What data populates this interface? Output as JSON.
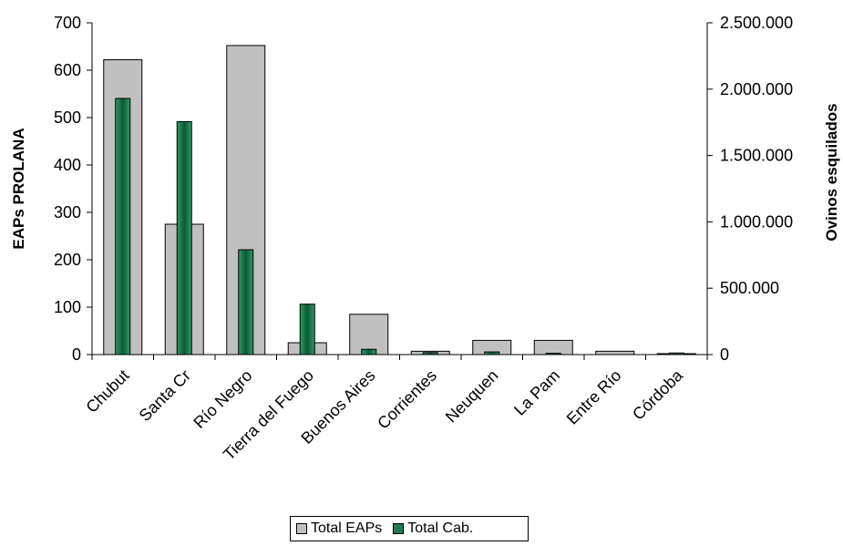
{
  "chart_data": {
    "type": "bar",
    "categories": [
      "Chubut",
      "Santa Cr",
      "Río Negro",
      "Tierra del Fuego",
      "Buenos Aires",
      "Corrientes",
      "Neuquen",
      "La Pam",
      "Entre Río",
      "Córdoba"
    ],
    "series": [
      {
        "name": "Total EAPs",
        "axis": "left",
        "color": "#c0c0c0",
        "values": [
          622,
          275,
          652,
          25,
          85,
          7,
          30,
          30,
          7,
          2
        ]
      },
      {
        "name": "Total Cab.",
        "axis": "right",
        "color": "#1f7a4f",
        "values": [
          1930000,
          1755000,
          790000,
          380000,
          40000,
          15000,
          20000,
          10000,
          0,
          12000
        ]
      }
    ],
    "ylabel": "EAPs PROLANA",
    "y2label": "Ovinos esquilados",
    "ylim": [
      0,
      700
    ],
    "y2lim": [
      0,
      2500000
    ],
    "yticks": [
      "0",
      "100",
      "200",
      "300",
      "400",
      "500",
      "600",
      "700"
    ],
    "y2ticks": [
      "0",
      "500.000",
      "1.000.000",
      "1.500.000",
      "2.000.000",
      "2.500.000"
    ],
    "legend_position": "bottom",
    "grid": false
  }
}
